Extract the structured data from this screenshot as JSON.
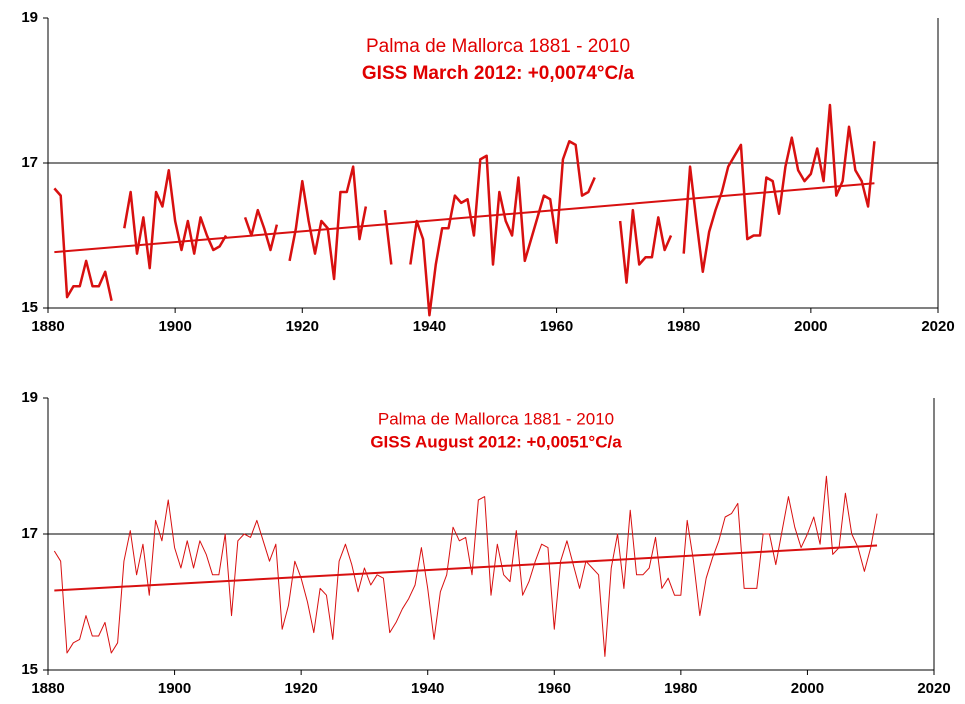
{
  "chart_data": [
    {
      "type": "line",
      "title": "Palma de Mallorca 1881 - 2010",
      "subtitle": "GISS March 2012: +0,0074°C/a",
      "title_color": "#e00000",
      "line_width": 2.5,
      "grid": true,
      "xlim": [
        1880,
        2020
      ],
      "xticks": [
        1880,
        1900,
        1920,
        1940,
        1960,
        1980,
        2000,
        2020
      ],
      "ylim": [
        15,
        19
      ],
      "yticks": [
        15,
        17,
        19
      ],
      "series": [
        {
          "color": "#d81010",
          "x": [
            1881,
            1882,
            1883,
            1884,
            1885,
            1886,
            1887,
            1888,
            1889,
            1890,
            1891,
            1892,
            1893,
            1894,
            1895,
            1896,
            1897,
            1898,
            1899,
            1900,
            1901,
            1902,
            1903,
            1904,
            1905,
            1906,
            1907,
            1908,
            1909,
            1910,
            1911,
            1912,
            1913,
            1914,
            1915,
            1916,
            1917,
            1918,
            1919,
            1920,
            1921,
            1922,
            1923,
            1924,
            1925,
            1926,
            1927,
            1928,
            1929,
            1930,
            1931,
            1932,
            1933,
            1934,
            1935,
            1936,
            1937,
            1938,
            1939,
            1940,
            1941,
            1942,
            1943,
            1944,
            1945,
            1946,
            1947,
            1948,
            1949,
            1950,
            1951,
            1952,
            1953,
            1954,
            1955,
            1956,
            1957,
            1958,
            1959,
            1960,
            1961,
            1962,
            1963,
            1964,
            1965,
            1966,
            1967,
            1968,
            1969,
            1970,
            1971,
            1972,
            1973,
            1974,
            1975,
            1976,
            1977,
            1978,
            1979,
            1980,
            1981,
            1982,
            1983,
            1984,
            1985,
            1986,
            1987,
            1988,
            1989,
            1990,
            1991,
            1992,
            1993,
            1994,
            1995,
            1996,
            1997,
            1998,
            1999,
            2000,
            2001,
            2002,
            2003,
            2004,
            2005,
            2006,
            2007,
            2008,
            2009,
            2010
          ],
          "values": [
            16.65,
            16.55,
            15.15,
            15.3,
            15.3,
            15.65,
            15.3,
            15.3,
            15.5,
            15.1,
            null,
            16.1,
            16.6,
            15.75,
            16.25,
            15.55,
            16.6,
            16.4,
            16.9,
            16.2,
            15.8,
            16.2,
            15.75,
            16.25,
            16.0,
            15.8,
            15.85,
            16.0,
            null,
            null,
            16.25,
            16.0,
            16.35,
            16.1,
            15.8,
            16.15,
            null,
            15.65,
            16.1,
            16.75,
            16.2,
            15.75,
            16.2,
            16.1,
            15.4,
            16.6,
            16.6,
            16.95,
            15.95,
            16.4,
            null,
            null,
            16.35,
            15.6,
            null,
            null,
            15.6,
            16.2,
            15.95,
            14.9,
            15.6,
            16.1,
            16.1,
            16.55,
            16.45,
            16.5,
            16.0,
            17.05,
            17.1,
            15.6,
            16.6,
            16.2,
            16.0,
            16.8,
            15.65,
            15.95,
            16.25,
            16.55,
            16.5,
            15.9,
            17.05,
            17.3,
            17.25,
            16.55,
            16.6,
            16.8,
            null,
            null,
            null,
            16.2,
            15.35,
            16.35,
            15.6,
            15.7,
            15.7,
            16.25,
            15.8,
            16.0,
            null,
            15.75,
            16.95,
            16.2,
            15.5,
            16.05,
            16.35,
            16.6,
            16.95,
            17.1,
            17.25,
            15.95,
            16.0,
            16.0,
            16.8,
            16.75,
            16.3,
            16.95,
            17.35,
            16.9,
            16.75,
            16.85,
            17.2,
            16.75,
            17.8,
            16.55,
            16.75,
            17.5,
            16.9,
            16.75,
            16.4,
            17.3
          ]
        },
        {
          "color": "#d81010",
          "x": [
            1881,
            2010
          ],
          "values": [
            15.77,
            16.72
          ]
        }
      ]
    },
    {
      "type": "line",
      "title": "Palma de Mallorca 1881 - 2010",
      "subtitle": "GISS August 2012: +0,0051°C/a",
      "title_color": "#e00000",
      "line_width": 1,
      "grid": true,
      "xlim": [
        1880,
        2020
      ],
      "xticks": [
        1880,
        1900,
        1920,
        1940,
        1960,
        1980,
        2000,
        2020
      ],
      "ylim": [
        15,
        19
      ],
      "yticks": [
        15,
        17,
        19
      ],
      "series": [
        {
          "color": "#d81010",
          "x": [
            1881,
            1882,
            1883,
            1884,
            1885,
            1886,
            1887,
            1888,
            1889,
            1890,
            1891,
            1892,
            1893,
            1894,
            1895,
            1896,
            1897,
            1898,
            1899,
            1900,
            1901,
            1902,
            1903,
            1904,
            1905,
            1906,
            1907,
            1908,
            1909,
            1910,
            1911,
            1912,
            1913,
            1914,
            1915,
            1916,
            1917,
            1918,
            1919,
            1920,
            1921,
            1922,
            1923,
            1924,
            1925,
            1926,
            1927,
            1928,
            1929,
            1930,
            1931,
            1932,
            1933,
            1934,
            1935,
            1936,
            1937,
            1938,
            1939,
            1940,
            1941,
            1942,
            1943,
            1944,
            1945,
            1946,
            1947,
            1948,
            1949,
            1950,
            1951,
            1952,
            1953,
            1954,
            1955,
            1956,
            1957,
            1958,
            1959,
            1960,
            1961,
            1962,
            1963,
            1964,
            1965,
            1966,
            1967,
            1968,
            1969,
            1970,
            1971,
            1972,
            1973,
            1974,
            1975,
            1976,
            1977,
            1978,
            1979,
            1980,
            1981,
            1982,
            1983,
            1984,
            1985,
            1986,
            1987,
            1988,
            1989,
            1990,
            1991,
            1992,
            1993,
            1994,
            1995,
            1996,
            1997,
            1998,
            1999,
            2000,
            2001,
            2002,
            2003,
            2004,
            2005,
            2006,
            2007,
            2008,
            2009,
            2010,
            2011
          ],
          "values": [
            16.75,
            16.6,
            15.25,
            15.4,
            15.45,
            15.8,
            15.5,
            15.5,
            15.7,
            15.25,
            15.4,
            16.6,
            17.05,
            16.4,
            16.85,
            16.1,
            17.2,
            16.9,
            17.5,
            16.8,
            16.5,
            16.9,
            16.5,
            16.9,
            16.7,
            16.4,
            16.4,
            17.0,
            15.8,
            16.9,
            17.0,
            16.95,
            17.2,
            16.9,
            16.6,
            16.85,
            15.6,
            15.95,
            16.6,
            16.35,
            16.0,
            15.55,
            16.2,
            16.1,
            15.45,
            16.6,
            16.85,
            16.55,
            16.15,
            16.5,
            16.25,
            16.4,
            16.35,
            15.55,
            15.7,
            15.9,
            16.05,
            16.25,
            16.8,
            16.2,
            15.45,
            16.15,
            16.4,
            17.1,
            16.9,
            16.95,
            16.4,
            17.5,
            17.55,
            16.1,
            16.85,
            16.4,
            16.3,
            17.05,
            16.1,
            16.3,
            16.6,
            16.85,
            16.8,
            15.6,
            16.6,
            16.9,
            16.55,
            16.2,
            16.6,
            16.5,
            16.4,
            15.2,
            16.5,
            17.0,
            16.2,
            17.35,
            16.4,
            16.4,
            16.5,
            16.95,
            16.2,
            16.35,
            16.1,
            16.1,
            17.2,
            16.6,
            15.8,
            16.35,
            16.65,
            16.9,
            17.25,
            17.3,
            17.45,
            16.2,
            16.2,
            16.2,
            17.0,
            17.0,
            16.55,
            17.05,
            17.55,
            17.1,
            16.8,
            17.0,
            17.25,
            16.85,
            17.85,
            16.7,
            16.8,
            17.6,
            17.0,
            16.8,
            16.45,
            16.8,
            17.3
          ]
        },
        {
          "color": "#d81010",
          "x": [
            1881,
            2011
          ],
          "values": [
            16.17,
            16.83
          ]
        }
      ]
    }
  ]
}
